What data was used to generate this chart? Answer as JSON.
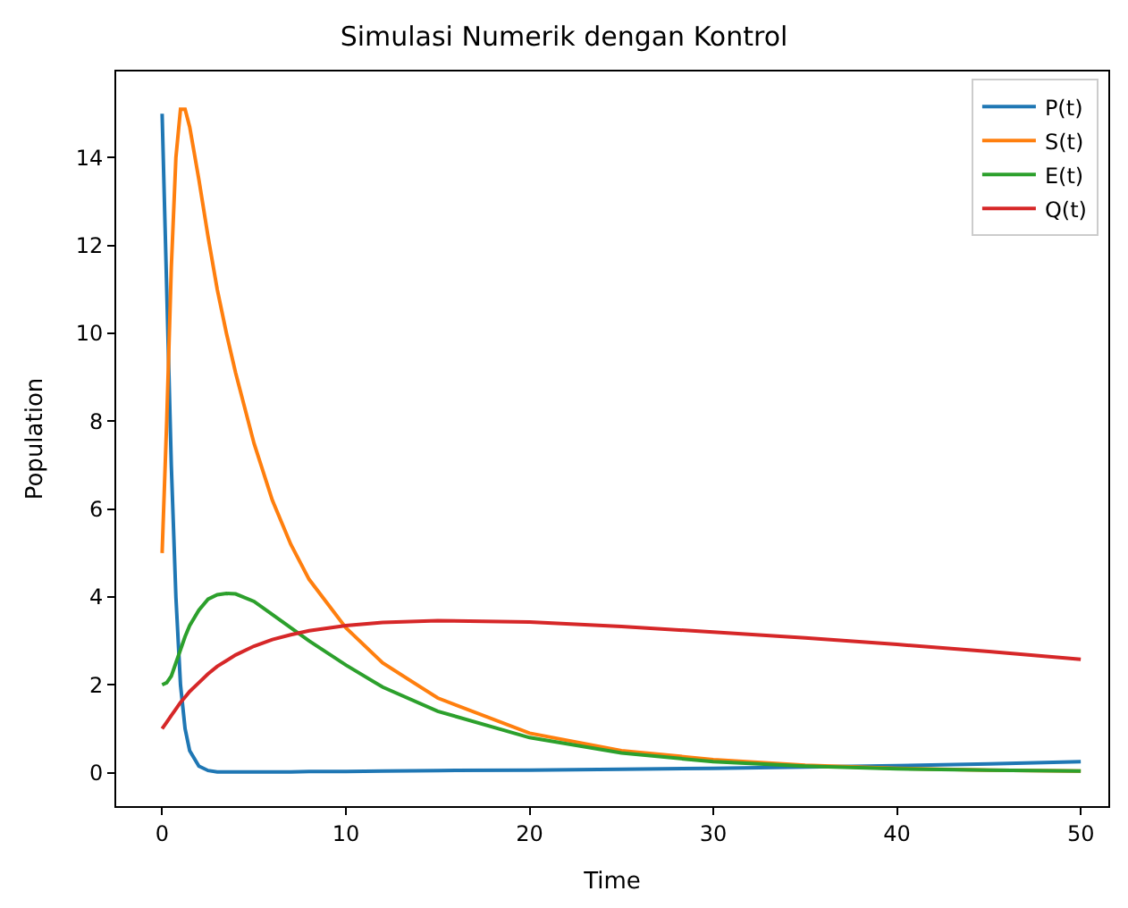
{
  "chart_data": {
    "type": "line",
    "title": "Simulasi Numerik dengan Kontrol",
    "xlabel": "Time",
    "ylabel": "Population",
    "x": [
      0,
      0.25,
      0.5,
      0.75,
      1,
      1.25,
      1.5,
      2,
      2.5,
      3,
      3.5,
      4,
      5,
      6,
      7,
      8,
      10,
      12,
      15,
      20,
      25,
      30,
      35,
      40,
      45,
      50
    ],
    "series": [
      {
        "name": "P(t)",
        "color": "#1f77b4",
        "values": [
          15,
          11,
          7,
          4,
          2,
          1,
          0.5,
          0.15,
          0.05,
          0.02,
          0.02,
          0.02,
          0.02,
          0.02,
          0.02,
          0.03,
          0.03,
          0.04,
          0.05,
          0.06,
          0.08,
          0.1,
          0.13,
          0.16,
          0.2,
          0.25
        ]
      },
      {
        "name": "S(t)",
        "color": "#ff7f0e",
        "values": [
          5,
          8,
          11.5,
          14,
          15.1,
          15.1,
          14.7,
          13.5,
          12.2,
          11,
          10,
          9.1,
          7.5,
          6.2,
          5.2,
          4.4,
          3.3,
          2.5,
          1.7,
          0.9,
          0.5,
          0.3,
          0.17,
          0.1,
          0.06,
          0.04
        ]
      },
      {
        "name": "E(t)",
        "color": "#2ca02c",
        "values": [
          2,
          2.05,
          2.2,
          2.5,
          2.8,
          3.1,
          3.35,
          3.7,
          3.95,
          4.05,
          4.08,
          4.07,
          3.9,
          3.6,
          3.3,
          3.0,
          2.45,
          1.95,
          1.4,
          0.8,
          0.45,
          0.25,
          0.15,
          0.09,
          0.06,
          0.04
        ]
      },
      {
        "name": "Q(t)",
        "color": "#d62728",
        "values": [
          1,
          1.15,
          1.3,
          1.45,
          1.6,
          1.72,
          1.85,
          2.05,
          2.25,
          2.42,
          2.55,
          2.68,
          2.88,
          3.03,
          3.14,
          3.23,
          3.35,
          3.42,
          3.46,
          3.43,
          3.33,
          3.2,
          3.07,
          2.92,
          2.76,
          2.58
        ]
      }
    ],
    "xlim": [
      -2.5,
      51.5
    ],
    "ylim": [
      -0.76,
      15.96
    ],
    "xticks": [
      0,
      10,
      20,
      30,
      40,
      50
    ],
    "yticks": [
      0,
      2,
      4,
      6,
      8,
      10,
      12,
      14
    ],
    "grid": false,
    "legend": "top right",
    "marker": "none",
    "line_style": "solid"
  }
}
